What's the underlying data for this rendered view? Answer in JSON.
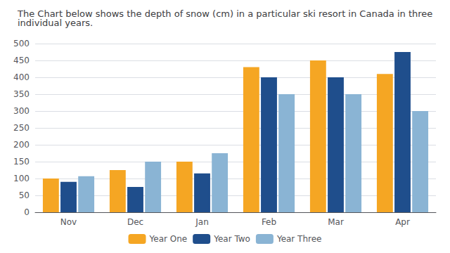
{
  "chart_data": {
    "type": "bar",
    "title": "The Chart below shows the depth of snow (cm) in a particular ski resort in Canada in three individual years.",
    "categories": [
      "Nov",
      "Dec",
      "Jan",
      "Feb",
      "Mar",
      "Apr"
    ],
    "series": [
      {
        "name": "Year One",
        "color": "#F5A623",
        "values": [
          100,
          125,
          150,
          430,
          450,
          410
        ]
      },
      {
        "name": "Year Two",
        "color": "#1F4E8C",
        "values": [
          90,
          75,
          115,
          400,
          400,
          475
        ]
      },
      {
        "name": "Year Three",
        "color": "#8AB4D4",
        "values": [
          107,
          150,
          175,
          350,
          350,
          300
        ]
      }
    ],
    "ylim": [
      0,
      500
    ],
    "yticks": [
      0,
      50,
      100,
      150,
      200,
      250,
      300,
      350,
      400,
      450,
      500
    ],
    "grid": true,
    "legend": "bottom"
  }
}
